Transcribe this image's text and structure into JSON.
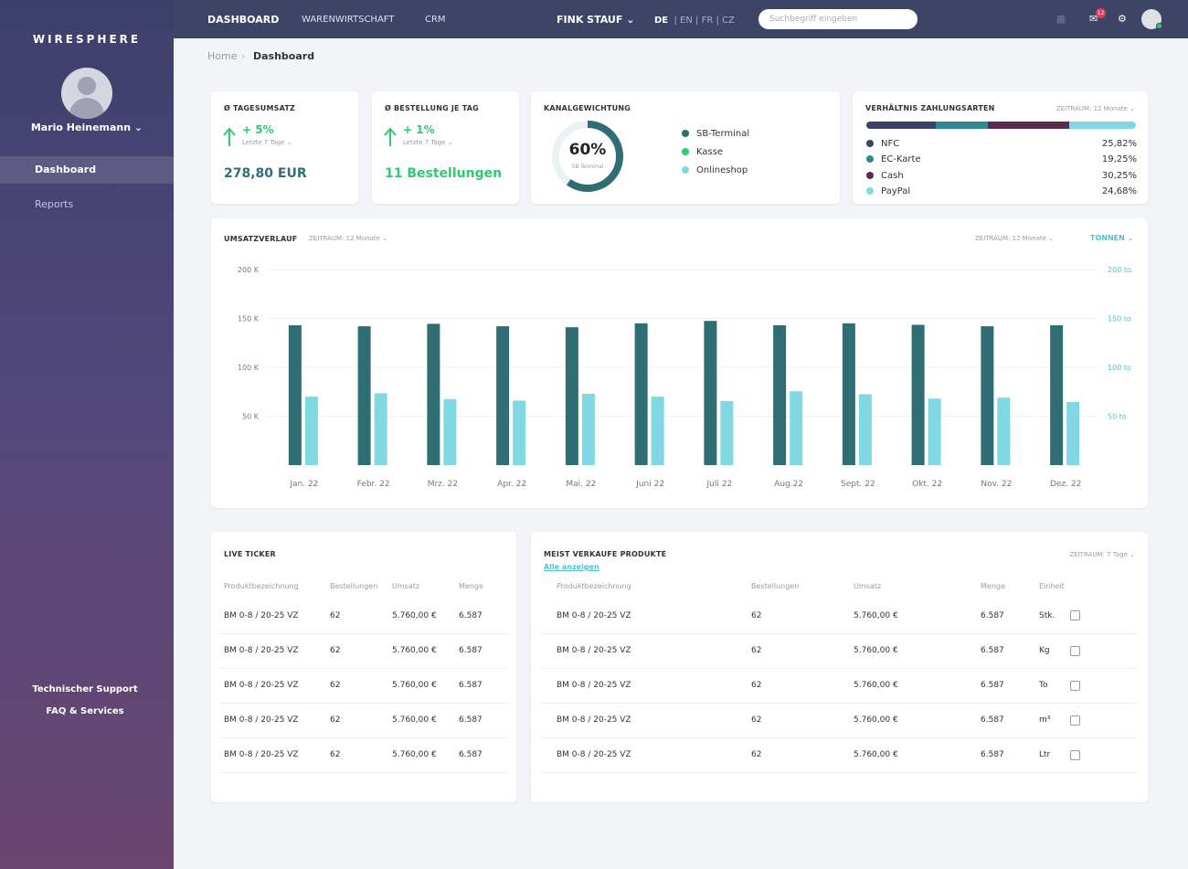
{
  "sidebar": {
    "brand": "WIRESPHERE",
    "user_name": "Mario Heinemann ⌄",
    "nav": [
      {
        "label": "Dashboard",
        "active": true
      },
      {
        "label": "Reports",
        "active": false
      }
    ],
    "support": "Technischer Support",
    "faq": "FAQ & Services"
  },
  "topbar": {
    "tabs": [
      "DASHBOARD",
      "WARENWIRTSCHAFT",
      "CRM"
    ],
    "company": "FINK STAUF ⌄",
    "lang_active": "DE",
    "lang_others": "| EN | FR | CZ",
    "search_placeholder": "Suchbegriff eingeben",
    "notification_count": "12",
    "icons": [
      "menu-icon",
      "mail-icon",
      "gear-icon",
      "user-avatar"
    ]
  },
  "breadcrumb": {
    "home": "Home",
    "separator": "›",
    "current": "Dashboard"
  },
  "kpi1": {
    "title": "Ø TAGESUMSATZ",
    "change": "+ 5%",
    "period": "Letzte 7 Tage ⌄",
    "value": "278,80 EUR"
  },
  "kpi2": {
    "title": "Ø BESTELLUNG JE TAG",
    "change": "+ 1%",
    "period": "Letzte 7 Tage ⌄",
    "value": "11 Bestellungen"
  },
  "channel": {
    "title": "KANALGEWICHTUNG",
    "donut_value": "60%",
    "donut_label": "SB-Terminal",
    "donut_fraction": 0.6,
    "legend": [
      {
        "label": "SB-Terminal",
        "color": "#2f6e74"
      },
      {
        "label": "Kasse",
        "color": "#2ecc71"
      },
      {
        "label": "Onlineshop",
        "color": "#7fd8e2"
      }
    ]
  },
  "payment": {
    "title": "VERHÄLTNIS ZAHLUNGSARTEN",
    "period": "ZEITRAUM: 12 Monate ⌄",
    "rows": [
      {
        "label": "NFC",
        "value": "25,82%",
        "color": "#3b4466",
        "pct": 25.82
      },
      {
        "label": "EC-Karte",
        "value": "19,25%",
        "color": "#2e8a8f",
        "pct": 19.25
      },
      {
        "label": "Cash",
        "value": "30,25%",
        "color": "#5a2a4f",
        "pct": 30.25
      },
      {
        "label": "PayPal",
        "value": "24,68%",
        "color": "#7fd8e2",
        "pct": 24.68
      }
    ]
  },
  "revenue_card": {
    "title": "UMSATZVERLAUF",
    "period_left": "ZEITRAUM: 12 Monate ⌄",
    "period_right": "ZEITRAUM: 12 Monate ⌄",
    "unit_toggle": "TONNEN ⌄"
  },
  "chart_data": {
    "type": "bar",
    "categories": [
      "Jan. 22",
      "Febr. 22",
      "Mrz. 22",
      "Apr. 22",
      "Mai. 22",
      "Juni 22",
      "Juli 22",
      "Aug.22",
      "Sept. 22",
      "Okt. 22",
      "Nov. 22",
      "Dez. 22"
    ],
    "series": [
      {
        "values": [
          143000,
          142000,
          144500,
          142000,
          141000,
          145000,
          147500,
          143000,
          145000,
          143500,
          142000,
          143000
        ],
        "color": "#2f6e74"
      },
      {
        "values": [
          70000,
          73500,
          67500,
          66000,
          73000,
          70000,
          65500,
          75500,
          72500,
          68000,
          69000,
          64500
        ],
        "color": "#7fd8e2"
      }
    ],
    "ylim": [
      0,
      200000
    ],
    "left_ticks": [
      {
        "v": 200000,
        "label": "200 K"
      },
      {
        "v": 150000,
        "label": "150 K"
      },
      {
        "v": 100000,
        "label": "100 K"
      },
      {
        "v": 50000,
        "label": "50 K"
      }
    ],
    "right_ticks": [
      {
        "v": 200000,
        "label": "200 to."
      },
      {
        "v": 150000,
        "label": "150 to"
      },
      {
        "v": 100000,
        "label": "100 to"
      },
      {
        "v": 50000,
        "label": "50 to"
      }
    ],
    "grid": true
  },
  "live_ticker": {
    "title": "LIVE TICKER",
    "headers": [
      "Produktbezeichnung",
      "Bestellungen",
      "Umsatz",
      "Menge"
    ],
    "rows": [
      [
        "BM 0-8 / 20-25 VZ",
        "62",
        "5.760,00 €",
        "6.587"
      ],
      [
        "BM 0-8 / 20-25 VZ",
        "62",
        "5.760,00 €",
        "6.587"
      ],
      [
        "BM 0-8 / 20-25 VZ",
        "62",
        "5.760,00 €",
        "6.587"
      ],
      [
        "BM 0-8 / 20-25 VZ",
        "62",
        "5.760,00 €",
        "6.587"
      ],
      [
        "BM 0-8 / 20-25 VZ",
        "62",
        "5.760,00 €",
        "6.587"
      ]
    ]
  },
  "top_products": {
    "title": "MEIST VERKAUFE PRODUKTE",
    "link": "Alle anzeigen",
    "period": "ZEITRAUM: 7 Tage ⌄",
    "headers": [
      "Produktbezeichnung",
      "Bestellungen",
      "Umsatz",
      "Menge",
      "Einheit"
    ],
    "rows": [
      [
        "BM 0-8 / 20-25 VZ",
        "62",
        "5.760,00 €",
        "6.587",
        "Stk."
      ],
      [
        "BM 0-8 / 20-25 VZ",
        "62",
        "5.760,00 €",
        "6.587",
        "Kg"
      ],
      [
        "BM 0-8 / 20-25 VZ",
        "62",
        "5.760,00 €",
        "6.587",
        "To"
      ],
      [
        "BM 0-8 / 20-25 VZ",
        "62",
        "5.760,00 €",
        "6.587",
        "m³"
      ],
      [
        "BM 0-8 / 20-25 VZ",
        "62",
        "5.760,00 €",
        "6.587",
        "Ltr"
      ]
    ]
  }
}
